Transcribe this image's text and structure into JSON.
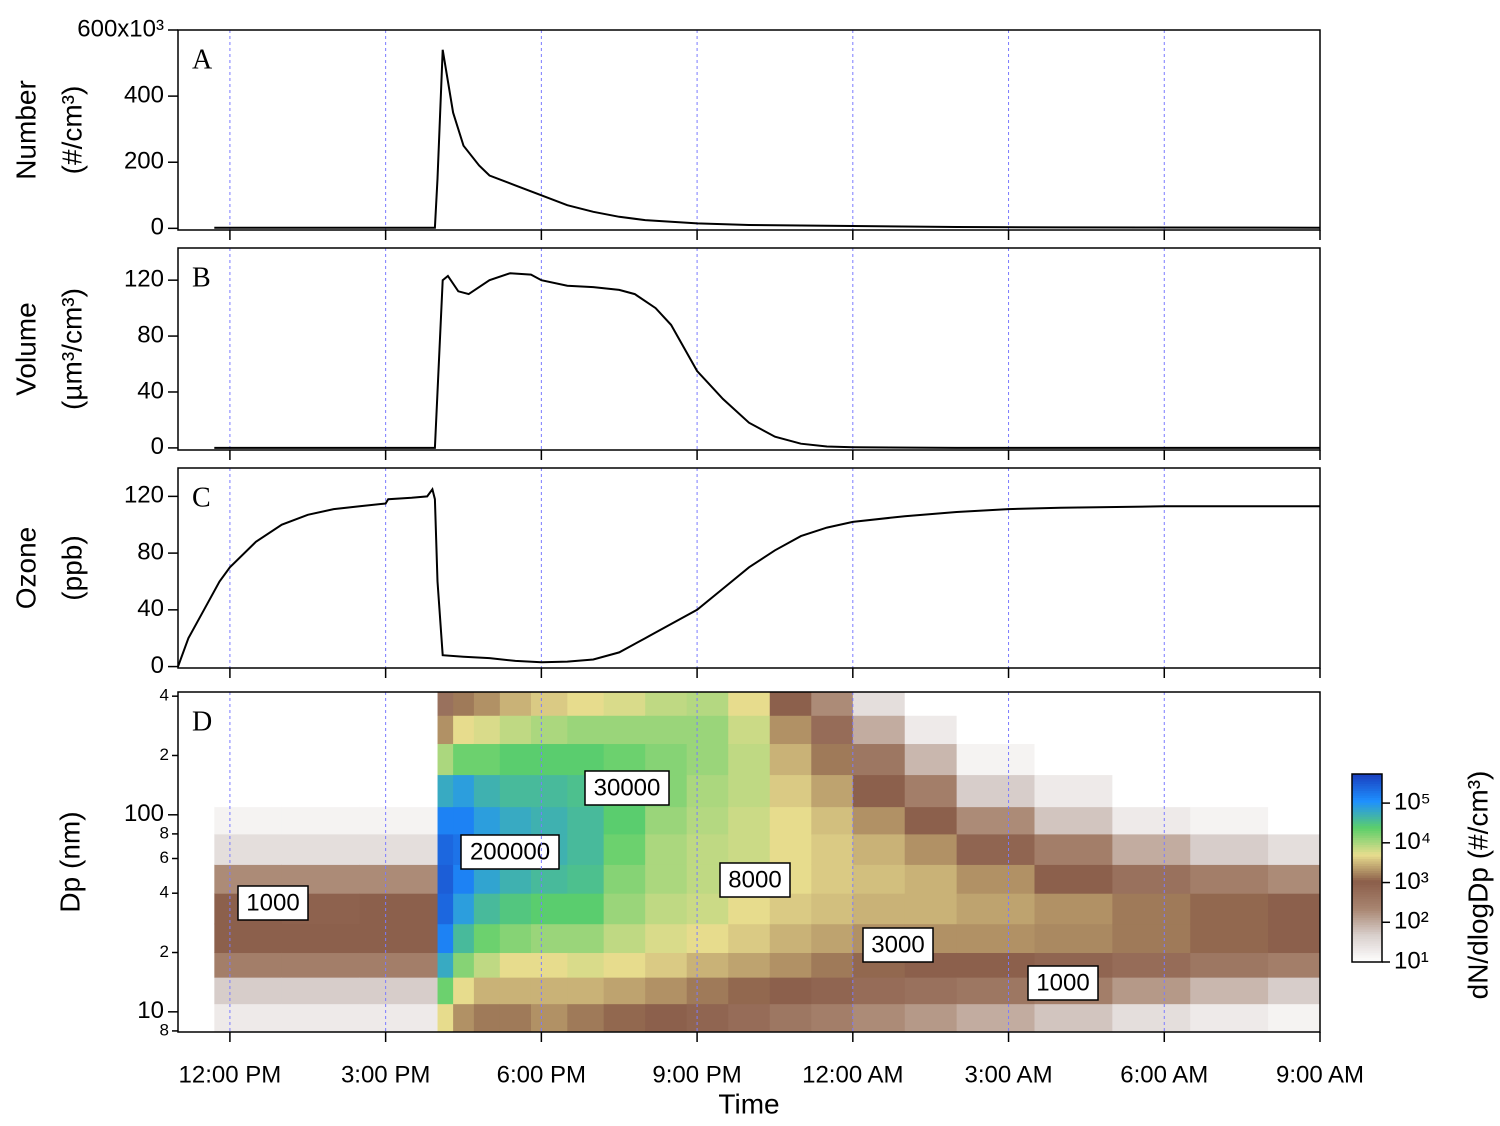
{
  "chart_data": [
    {
      "type": "line",
      "panel_label": "A",
      "ylabel": [
        "Number",
        "(#/cm³)"
      ],
      "xlim": [
        11,
        33
      ],
      "xticks": [
        12,
        15,
        18,
        21,
        24,
        27,
        30,
        33
      ],
      "grid": true,
      "grid_color": "#7b7bff",
      "ylim": [
        -5,
        600
      ],
      "yticks": [
        0,
        200,
        400,
        {
          "value": 600,
          "label": "600x10³"
        }
      ],
      "series": [
        {
          "color": "#000000",
          "x": [
            11.7,
            15.95,
            16.0,
            16.1,
            16.3,
            16.5,
            16.8,
            17.0,
            17.5,
            18.0,
            18.5,
            19.0,
            19.5,
            20.0,
            21.0,
            22.0,
            24.0,
            26.0,
            28.0,
            33.0
          ],
          "values": [
            2,
            2,
            150,
            540,
            350,
            250,
            190,
            160,
            130,
            100,
            70,
            50,
            35,
            25,
            15,
            10,
            7,
            4,
            3,
            2
          ]
        }
      ]
    },
    {
      "type": "line",
      "panel_label": "B",
      "ylabel": [
        "Volume",
        "(µm³/cm³)"
      ],
      "xlim": [
        11,
        33
      ],
      "xticks": [
        12,
        15,
        18,
        21,
        24,
        27,
        30,
        33
      ],
      "grid": true,
      "grid_color": "#7b7bff",
      "ylim": [
        -1.5,
        143
      ],
      "yticks": [
        0,
        40,
        80,
        120
      ],
      "series": [
        {
          "color": "#000000",
          "x": [
            11.7,
            15.95,
            16.1,
            16.2,
            16.4,
            16.6,
            17.0,
            17.4,
            17.8,
            18.0,
            18.5,
            19.0,
            19.5,
            19.8,
            20.2,
            20.5,
            21.0,
            21.5,
            22.0,
            22.5,
            23.0,
            23.5,
            24.0,
            26.0,
            33.0
          ],
          "values": [
            0,
            0,
            120,
            123,
            112,
            110,
            120,
            125,
            124,
            120,
            116,
            115,
            113,
            110,
            100,
            88,
            55,
            35,
            18,
            8,
            3,
            1,
            0.5,
            0,
            0
          ]
        }
      ]
    },
    {
      "type": "line",
      "panel_label": "C",
      "ylabel": [
        "Ozone",
        "(ppb)"
      ],
      "xlim": [
        11,
        33
      ],
      "xticks": [
        12,
        15,
        18,
        21,
        24,
        27,
        30,
        33
      ],
      "grid": true,
      "grid_color": "#7b7bff",
      "ylim": [
        -1,
        140
      ],
      "yticks": [
        0,
        40,
        80,
        120
      ],
      "series": [
        {
          "color": "#000000",
          "x": [
            11.0,
            11.2,
            11.5,
            11.8,
            12.0,
            12.5,
            13.0,
            13.5,
            14.0,
            14.5,
            15.0,
            15.05,
            15.5,
            15.8,
            15.9,
            15.95,
            16.0,
            16.1,
            16.5,
            17.0,
            17.5,
            18.0,
            18.5,
            19.0,
            19.5,
            20.0,
            20.5,
            21.0,
            21.5,
            22.0,
            22.5,
            23.0,
            23.5,
            24.0,
            25.0,
            26.0,
            27.0,
            28.0,
            30.0,
            33.0
          ],
          "values": [
            0,
            20,
            40,
            60,
            70,
            88,
            100,
            107,
            111,
            113,
            115,
            118,
            119,
            120,
            125,
            118,
            60,
            8,
            7,
            6,
            4,
            3,
            3.5,
            5,
            10,
            20,
            30,
            40,
            55,
            70,
            82,
            92,
            98,
            102,
            106,
            109,
            111,
            112,
            113,
            113
          ]
        }
      ]
    },
    {
      "type": "heatmap",
      "panel_label": "D",
      "ylabel": [
        "Dp (nm)"
      ],
      "xlabel": "Time",
      "xlim": [
        11,
        33
      ],
      "xticks": [
        {
          "value": 12,
          "label": "12:00 PM"
        },
        {
          "value": 15,
          "label": "3:00 PM"
        },
        {
          "value": 18,
          "label": "6:00 PM"
        },
        {
          "value": 21,
          "label": "9:00 PM"
        },
        {
          "value": 24,
          "label": "12:00 AM"
        },
        {
          "value": 27,
          "label": "3:00 AM"
        },
        {
          "value": 30,
          "label": "6:00 AM"
        },
        {
          "value": 33,
          "label": "9:00 AM"
        }
      ],
      "grid": true,
      "grid_color": "#7b7bff",
      "log": true,
      "ylim": [
        7.9,
        420
      ],
      "yticks": [
        8,
        10,
        {
          "value": 20,
          "label": "2"
        },
        {
          "value": 40,
          "label": "4"
        },
        {
          "value": 60,
          "label": "6"
        },
        {
          "value": 80,
          "label": "8"
        },
        100,
        {
          "value": 200,
          "label": "2"
        },
        {
          "value": 400,
          "label": "4"
        }
      ],
      "x_edges": [
        11.7,
        13,
        14.5,
        16.0,
        16.3,
        16.7,
        17.2,
        17.8,
        18.5,
        19.2,
        20,
        20.8,
        21.6,
        22.4,
        23.2,
        24,
        25,
        26,
        27.5,
        29,
        30.5,
        32,
        33
      ],
      "y_edges": [
        8,
        11,
        15,
        20,
        28,
        40,
        56,
        80,
        110,
        160,
        230,
        320,
        420
      ],
      "z": [
        [
          20,
          50,
          300,
          1000,
          1000,
          200,
          30,
          15,
          10,
          10,
          10,
          10
        ],
        [
          20,
          50,
          300,
          1000,
          900,
          200,
          30,
          15,
          10,
          10,
          10,
          10
        ],
        [
          20,
          50,
          300,
          1000,
          1000,
          200,
          30,
          15,
          10,
          10,
          10,
          10
        ],
        [
          5000,
          20000,
          60000,
          150000,
          250000,
          300000,
          250000,
          150000,
          60000,
          10000,
          2000,
          500
        ],
        [
          2000,
          5000,
          15000,
          40000,
          80000,
          150000,
          200000,
          150000,
          80000,
          20000,
          5000,
          1500
        ],
        [
          1500,
          3000,
          8000,
          20000,
          40000,
          70000,
          90000,
          80000,
          50000,
          20000,
          6000,
          2000
        ],
        [
          1500,
          3000,
          5000,
          15000,
          30000,
          50000,
          60000,
          60000,
          40000,
          25000,
          8000,
          3000
        ],
        [
          2000,
          3000,
          5000,
          12000,
          25000,
          40000,
          50000,
          50000,
          40000,
          25000,
          10000,
          4000
        ],
        [
          1500,
          3000,
          6000,
          12000,
          25000,
          35000,
          40000,
          40000,
          35000,
          25000,
          12000,
          5000
        ],
        [
          1200,
          2500,
          5000,
          8000,
          12000,
          15000,
          20000,
          25000,
          25000,
          20000,
          12000,
          6000
        ],
        [
          1000,
          2000,
          4000,
          6000,
          8000,
          10000,
          10000,
          12000,
          15000,
          15000,
          12000,
          8000
        ],
        [
          800,
          1500,
          3000,
          5000,
          7000,
          8000,
          8000,
          9000,
          10000,
          12000,
          12000,
          9000
        ],
        [
          600,
          1200,
          2500,
          4000,
          5000,
          6000,
          7000,
          7000,
          8000,
          8000,
          7000,
          5000
        ],
        [
          400,
          1000,
          2000,
          3000,
          4000,
          5000,
          5000,
          5000,
          4000,
          3000,
          2000,
          1000
        ],
        [
          300,
          800,
          1500,
          2500,
          3500,
          4000,
          4000,
          3500,
          2500,
          1500,
          600,
          200
        ],
        [
          200,
          600,
          1200,
          2000,
          3000,
          3500,
          3000,
          2000,
          1000,
          400,
          100,
          30
        ],
        [
          150,
          500,
          1000,
          2000,
          3000,
          3000,
          2000,
          1000,
          300,
          80,
          20,
          10
        ],
        [
          100,
          400,
          1000,
          2000,
          2500,
          2000,
          800,
          200,
          50,
          15,
          10,
          10
        ],
        [
          60,
          300,
          800,
          1800,
          2000,
          1000,
          300,
          60,
          20,
          10,
          10,
          10
        ],
        [
          30,
          150,
          600,
          1500,
          1500,
          500,
          100,
          20,
          10,
          10,
          10,
          10
        ],
        [
          20,
          80,
          400,
          1200,
          1200,
          300,
          50,
          15,
          10,
          10,
          10,
          10
        ],
        [
          15,
          50,
          300,
          1000,
          1000,
          200,
          30,
          10,
          10,
          10,
          10,
          10
        ]
      ],
      "colormap": [
        "#ffffff",
        "#d9d0cd",
        "#a88570",
        "#8b5e4a",
        "#e8dd8e",
        "#5ccf6a",
        "#1e90ff",
        "#1a3fbf"
      ],
      "clim": [
        10,
        540000
      ],
      "colorbar_label": "dN/dlogDp (#/cm³)",
      "colorbar_ticks": [
        {
          "value": 10,
          "label": "10¹"
        },
        {
          "value": 100,
          "label": "10²"
        },
        {
          "value": 1000,
          "label": "10³"
        },
        {
          "value": 10000,
          "label": "10⁴"
        },
        {
          "value": 100000,
          "label": "10⁵"
        }
      ],
      "annotations": [
        "1000",
        "200000",
        "30000",
        "8000",
        "3000",
        "1000"
      ]
    }
  ]
}
